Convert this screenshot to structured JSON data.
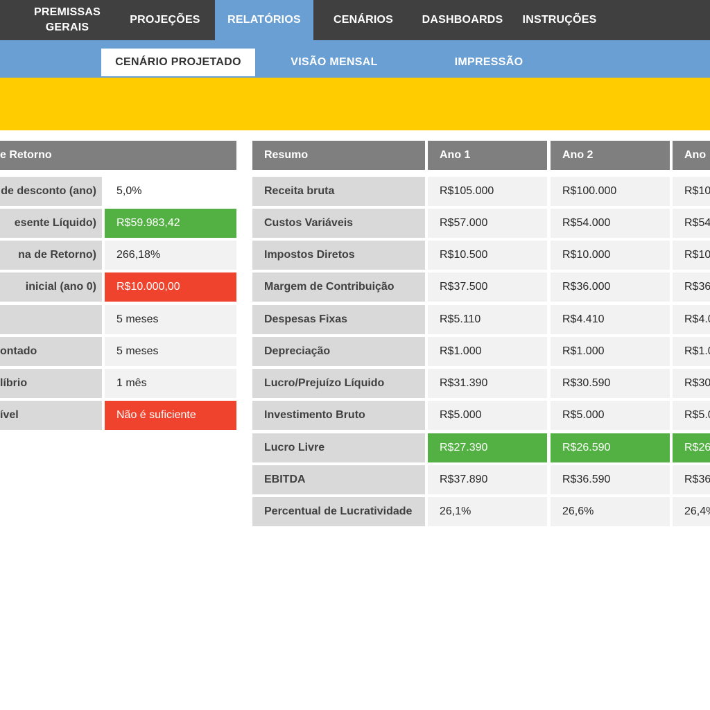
{
  "nav": {
    "items": [
      {
        "label": "PREMISSAS\nGERAIS"
      },
      {
        "label": "PROJEÇÕES"
      },
      {
        "label": "RELATÓRIOS"
      },
      {
        "label": "CENÁRIOS"
      },
      {
        "label": "DASHBOARDS"
      },
      {
        "label": "INSTRUÇÕES"
      }
    ],
    "active": "RELATÓRIOS"
  },
  "subnav": {
    "items": [
      {
        "label": "CENÁRIO PROJETADO"
      },
      {
        "label": "VISÃO MENSAL"
      },
      {
        "label": "IMPRESSÃO"
      }
    ],
    "active": "CENÁRIO PROJETADO"
  },
  "retorno": {
    "header": "e Retorno",
    "rows": [
      {
        "label": "de desconto (ano)",
        "value": "5,0%"
      },
      {
        "label": "esente Líquido)",
        "value": "R$59.983,42"
      },
      {
        "label": "na de Retorno)",
        "value": "266,18%"
      },
      {
        "label": "inicial (ano 0)",
        "value": "R$10.000,00"
      },
      {
        "label": "",
        "value": "5 meses"
      },
      {
        "label": "ontado",
        "value": "5 meses"
      },
      {
        "label": "líbrio",
        "value": "1 mês"
      },
      {
        "label": "ível",
        "value": "Não é suficiente"
      }
    ]
  },
  "resumo": {
    "headers": [
      "Resumo",
      "Ano 1",
      "Ano 2",
      "Ano"
    ],
    "rows": [
      {
        "label": "Receita bruta",
        "values": [
          "R$105.000",
          "R$100.000",
          "R$10"
        ]
      },
      {
        "label": "Custos Variáveis",
        "values": [
          "R$57.000",
          "R$54.000",
          "R$54"
        ]
      },
      {
        "label": "Impostos Diretos",
        "values": [
          "R$10.500",
          "R$10.000",
          "R$10"
        ]
      },
      {
        "label": "Margem de Contribuição",
        "values": [
          "R$37.500",
          "R$36.000",
          "R$36"
        ]
      },
      {
        "label": "Despesas Fixas",
        "values": [
          "R$5.110",
          "R$4.410",
          "R$4.0"
        ]
      },
      {
        "label": "Depreciação",
        "values": [
          "R$1.000",
          "R$1.000",
          "R$1.0"
        ]
      },
      {
        "label": "Lucro/Prejuízo Líquido",
        "values": [
          "R$31.390",
          "R$30.590",
          "R$30"
        ]
      },
      {
        "label": "Investimento Bruto",
        "values": [
          "R$5.000",
          "R$5.000",
          "R$5.0"
        ]
      },
      {
        "label": "Lucro Livre",
        "values": [
          "R$27.390",
          "R$26.590",
          "R$26"
        ]
      },
      {
        "label": "EBITDA",
        "values": [
          "R$37.890",
          "R$36.590",
          "R$36"
        ]
      },
      {
        "label": "Percentual de Lucratividade",
        "values": [
          "26,1%",
          "26,6%",
          "26,4%"
        ]
      }
    ]
  },
  "colors": {
    "nav_bg": "#404040",
    "accent_blue": "#6a9fd4",
    "banner_yellow": "#ffcc00",
    "positive_green": "#53b043",
    "negative_red": "#f0432e",
    "header_gray": "#7f7f7f",
    "label_gray": "#d9d9d9",
    "value_bg": "#f2f2f2"
  }
}
